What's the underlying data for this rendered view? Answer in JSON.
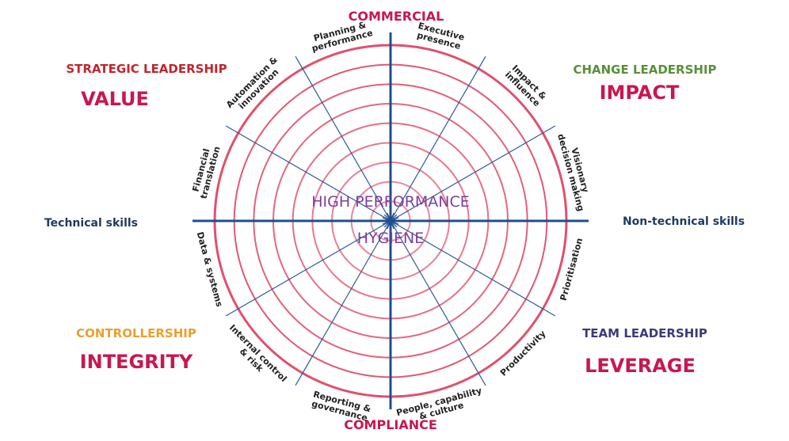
{
  "top_label": "COMMERCIAL",
  "bottom_label": "COMPLIANCE",
  "left_label": "Technical skills",
  "right_label": "Non-technical skills",
  "quadrants": [
    {
      "title": "STRATEGIC LEADERSHIP",
      "subtitle": "VALUE"
    },
    {
      "title": "CHANGE LEADERSHIP",
      "subtitle": "IMPACT"
    },
    {
      "title": "CONTROLLERSHIP",
      "subtitle": "INTEGRITY"
    },
    {
      "title": "TEAM LEADERSHIP",
      "subtitle": "LEVERAGE"
    }
  ],
  "center": {
    "upper": "HIGH PERFORMANCE",
    "lower": "HYGIENE"
  },
  "segments": [
    {
      "lines": [
        "Executive",
        "presence"
      ]
    },
    {
      "lines": [
        "Impact &",
        "influence"
      ]
    },
    {
      "lines": [
        "Visionary",
        "decision making"
      ]
    },
    {
      "lines": [
        "Prioritisation"
      ]
    },
    {
      "lines": [
        "Productivity"
      ]
    },
    {
      "lines": [
        "People, capability",
        "& culture"
      ]
    },
    {
      "lines": [
        "Reporting &",
        "governance"
      ]
    },
    {
      "lines": [
        "Internal control",
        "& risk"
      ]
    },
    {
      "lines": [
        "Data & systems"
      ]
    },
    {
      "lines": [
        "Financial",
        "translation"
      ]
    },
    {
      "lines": [
        "Automation &",
        "innovation"
      ]
    },
    {
      "lines": [
        "Planning &",
        "performance"
      ]
    }
  ]
}
